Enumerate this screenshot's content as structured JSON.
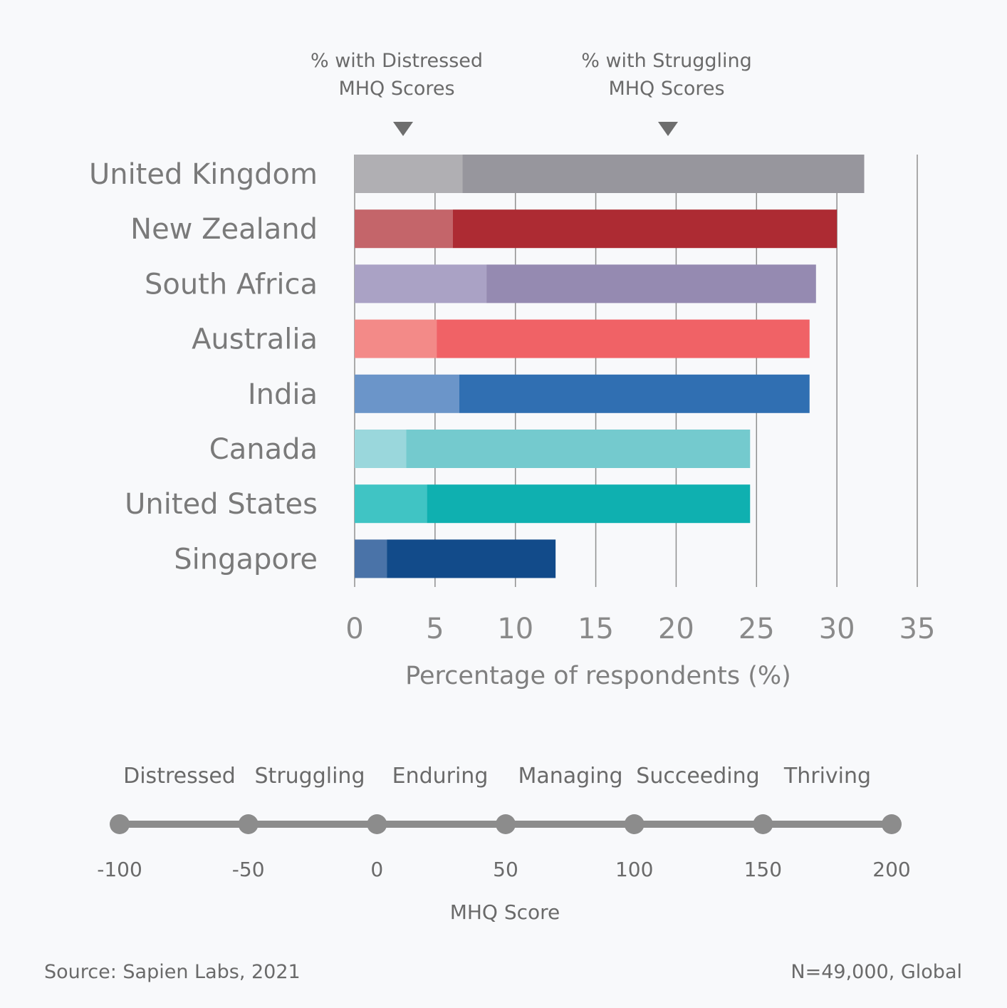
{
  "legend": {
    "distressed": [
      "% with Distressed",
      "MHQ Scores"
    ],
    "struggling": [
      "% with Struggling",
      "MHQ Scores"
    ]
  },
  "chart_data": {
    "type": "bar",
    "orientation": "horizontal",
    "stacked": true,
    "categories": [
      "United Kingdom",
      "New Zealand",
      "South Africa",
      "Australia",
      "India",
      "Canada",
      "United States",
      "Singapore"
    ],
    "series": [
      {
        "name": "% with Distressed MHQ Scores",
        "values": [
          6.7,
          6.1,
          8.2,
          5.1,
          6.5,
          3.2,
          4.5,
          2.0
        ]
      },
      {
        "name": "% with Struggling MHQ Scores",
        "values": [
          25.0,
          23.9,
          20.5,
          23.2,
          21.8,
          21.4,
          20.1,
          10.5
        ]
      }
    ],
    "colors": [
      [
        "#b0afb3",
        "#97969d"
      ],
      [
        "#c4656a",
        "#ad2b33"
      ],
      [
        "#aaa2c5",
        "#958ab1"
      ],
      [
        "#f38a88",
        "#f06266"
      ],
      [
        "#6b95c9",
        "#306fb2"
      ],
      [
        "#9ad7dc",
        "#74cace"
      ],
      [
        "#40c4c4",
        "#0fb0b0"
      ],
      [
        "#4a73a8",
        "#124b8a"
      ]
    ],
    "xlim": [
      0,
      35
    ],
    "xticks": [
      0,
      5,
      10,
      15,
      20,
      25,
      30,
      35
    ],
    "xlabel": "Percentage of respondents (%)",
    "grid": true
  },
  "mhq_scale": {
    "categories": [
      "Distressed",
      "Struggling",
      "Enduring",
      "Managing",
      "Succeeding",
      "Thriving"
    ],
    "ticks": [
      -100,
      -50,
      0,
      50,
      100,
      150,
      200
    ],
    "title": "MHQ Score",
    "line_color": "#8c8c8c"
  },
  "footer": {
    "source": "Source: Sapien Labs, 2021",
    "sample": "N=49,000, Global"
  }
}
